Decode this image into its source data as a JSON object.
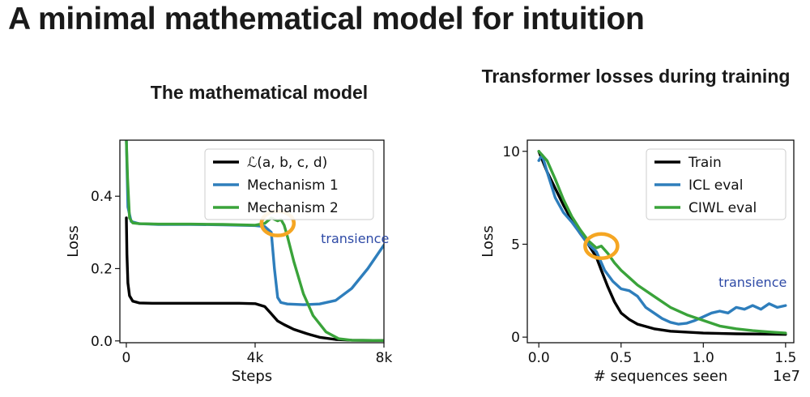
{
  "slide_title": "A minimal mathematical model for intuition",
  "chart_data": [
    {
      "type": "line",
      "title": "The mathematical model",
      "xlabel": "Steps",
      "ylabel": "Loss",
      "xlim": [
        -200,
        8000
      ],
      "ylim": [
        -0.005,
        0.555
      ],
      "xticks": [
        0,
        4000,
        8000
      ],
      "xtick_labels": [
        "0",
        "4k",
        "8k"
      ],
      "yticks": [
        0.0,
        0.2,
        0.4
      ],
      "ytick_labels": [
        "0.0",
        "0.2",
        "0.4"
      ],
      "legend_position": "top-right",
      "series": [
        {
          "name": "ℒ(a, b, c, d)",
          "color": "#000000",
          "x": [
            0,
            20,
            50,
            100,
            200,
            400,
            800,
            2000,
            3500,
            4000,
            4300,
            4500,
            4700,
            4900,
            5200,
            5600,
            6000,
            6500,
            7000,
            8000
          ],
          "y": [
            0.34,
            0.24,
            0.16,
            0.125,
            0.11,
            0.105,
            0.104,
            0.104,
            0.104,
            0.103,
            0.095,
            0.075,
            0.055,
            0.045,
            0.032,
            0.02,
            0.01,
            0.004,
            0.002,
            0.001
          ]
        },
        {
          "name": "Mechanism 1",
          "color": "#2e7ebc",
          "x": [
            0,
            50,
            150,
            400,
            1000,
            2000,
            3000,
            4000,
            4300,
            4500,
            4600,
            4700,
            4800,
            5000,
            5500,
            6000,
            6500,
            7000,
            7500,
            8000
          ],
          "y": [
            0.555,
            0.37,
            0.33,
            0.324,
            0.322,
            0.322,
            0.321,
            0.319,
            0.316,
            0.3,
            0.2,
            0.12,
            0.106,
            0.102,
            0.1,
            0.102,
            0.112,
            0.145,
            0.2,
            0.265
          ]
        },
        {
          "name": "Mechanism 2",
          "color": "#3aa33a",
          "x": [
            0,
            40,
            100,
            200,
            400,
            1000,
            2000,
            3000,
            4000,
            4300,
            4500,
            4700,
            4800,
            4900,
            5000,
            5200,
            5500,
            5800,
            6200,
            6600,
            7000,
            8000
          ],
          "y": [
            0.555,
            0.45,
            0.34,
            0.326,
            0.324,
            0.323,
            0.323,
            0.322,
            0.32,
            0.325,
            0.34,
            0.332,
            0.336,
            0.32,
            0.29,
            0.22,
            0.13,
            0.07,
            0.025,
            0.006,
            0.002,
            0.001
          ]
        }
      ],
      "annotations": [
        {
          "text": "transience",
          "color": "#2e4aa6",
          "x": 7100,
          "y": 0.27
        }
      ],
      "highlight_circle": {
        "x": 4700,
        "y": 0.325,
        "color": "#f5a623"
      }
    },
    {
      "type": "line",
      "title": "Transformer losses during training",
      "xlabel": "# sequences seen",
      "ylabel": "Loss",
      "x_multiplier": "1e7",
      "xlim": [
        -0.07,
        1.55
      ],
      "ylim": [
        -0.3,
        10.6
      ],
      "xticks": [
        0.0,
        0.5,
        1.0,
        1.5
      ],
      "xtick_labels": [
        "0.0",
        "0.5",
        "1.0",
        "1.5"
      ],
      "yticks": [
        0,
        5,
        10
      ],
      "ytick_labels": [
        "0",
        "5",
        "10"
      ],
      "legend_position": "top-right",
      "series": [
        {
          "name": "Train",
          "color": "#000000",
          "x": [
            0.0,
            0.05,
            0.1,
            0.15,
            0.2,
            0.25,
            0.3,
            0.35,
            0.38,
            0.42,
            0.46,
            0.5,
            0.55,
            0.6,
            0.7,
            0.8,
            1.0,
            1.2,
            1.5
          ],
          "y": [
            10.0,
            8.9,
            8.0,
            7.1,
            6.3,
            5.6,
            5.0,
            4.3,
            3.6,
            2.7,
            1.9,
            1.3,
            0.95,
            0.7,
            0.45,
            0.32,
            0.22,
            0.18,
            0.15
          ]
        },
        {
          "name": "ICL eval",
          "color": "#2e7ebc",
          "x": [
            0.0,
            0.02,
            0.05,
            0.1,
            0.15,
            0.2,
            0.25,
            0.3,
            0.35,
            0.4,
            0.45,
            0.5,
            0.55,
            0.6,
            0.65,
            0.7,
            0.75,
            0.8,
            0.85,
            0.9,
            0.95,
            1.0,
            1.05,
            1.1,
            1.15,
            1.2,
            1.25,
            1.3,
            1.35,
            1.4,
            1.45,
            1.5
          ],
          "y": [
            9.5,
            9.8,
            8.9,
            7.5,
            6.7,
            6.2,
            5.6,
            5.0,
            4.6,
            3.6,
            3.0,
            2.6,
            2.5,
            2.2,
            1.6,
            1.3,
            1.0,
            0.8,
            0.7,
            0.75,
            0.9,
            1.1,
            1.3,
            1.4,
            1.3,
            1.6,
            1.5,
            1.7,
            1.5,
            1.8,
            1.6,
            1.7
          ]
        },
        {
          "name": "CIWL eval",
          "color": "#3aa33a",
          "x": [
            0.0,
            0.05,
            0.1,
            0.15,
            0.2,
            0.25,
            0.3,
            0.35,
            0.38,
            0.42,
            0.46,
            0.5,
            0.55,
            0.6,
            0.7,
            0.8,
            0.9,
            1.0,
            1.1,
            1.2,
            1.3,
            1.4,
            1.5
          ],
          "y": [
            10.0,
            9.5,
            8.5,
            7.4,
            6.5,
            5.8,
            5.2,
            4.8,
            4.9,
            4.5,
            4.0,
            3.6,
            3.2,
            2.8,
            2.2,
            1.6,
            1.2,
            0.9,
            0.6,
            0.45,
            0.35,
            0.28,
            0.22
          ]
        }
      ],
      "annotations": [
        {
          "text": "transience",
          "color": "#2e4aa6",
          "x": 1.3,
          "y": 2.7
        }
      ],
      "highlight_circle": {
        "x": 0.38,
        "y": 4.9,
        "color": "#f5a623"
      }
    }
  ]
}
